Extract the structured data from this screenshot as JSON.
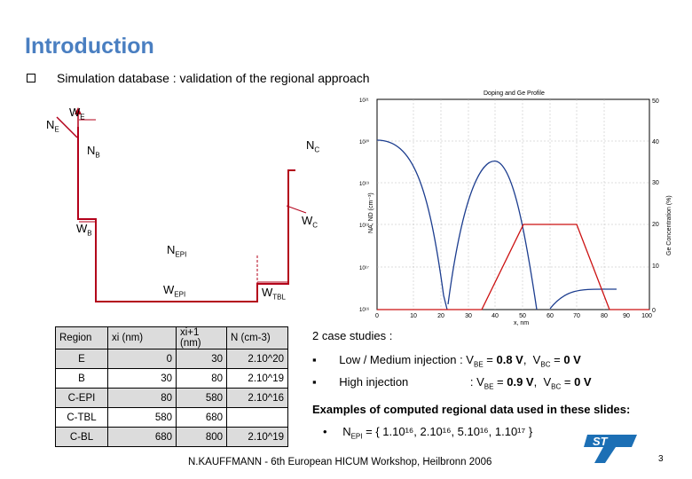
{
  "header": {
    "title": "Introduction",
    "subtitle": "Simulation database : validation of the regional approach"
  },
  "diagram": {
    "ne": "N",
    "ne_sub": "E",
    "we": "W",
    "we_sub": "E",
    "nb": "N",
    "nb_sub": "B",
    "nc": "N",
    "nc_sub": "C",
    "wb": "W",
    "wb_sub": "B",
    "wc": "W",
    "wc_sub": "C",
    "nepi": "N",
    "nepi_sub": "EPI",
    "wepi": "W",
    "wepi_sub": "EPI",
    "wtbl": "W",
    "wtbl_sub": "TBL"
  },
  "profile_chart": {
    "title": "Doping and Ge Profile",
    "ylabel_left": "NA, ND (cm⁻³)",
    "ylabel_right": "Ge Concentration (%)",
    "xlabel": "x, nm",
    "x_ticks": [
      "0",
      "10",
      "20",
      "30",
      "40",
      "50",
      "60",
      "70",
      "80",
      "90",
      "100"
    ],
    "y_left_ticks": [
      "10²¹",
      "10²⁰",
      "10¹⁹",
      "10¹⁸",
      "10¹⁷",
      "10¹⁶"
    ],
    "y_right_ticks": [
      "50",
      "40",
      "30",
      "20",
      "10",
      "0"
    ]
  },
  "table": {
    "headers": [
      "Region",
      "xi (nm)",
      "xi+1 (nm)",
      "N (cm-3)"
    ],
    "rows": [
      [
        "E",
        "0",
        "30",
        "2.10^20"
      ],
      [
        "B",
        "30",
        "80",
        "2.10^19"
      ],
      [
        "C-EPI",
        "80",
        "580",
        "2.10^16"
      ],
      [
        "C-TBL",
        "580",
        "680",
        ""
      ],
      [
        "C-BL",
        "680",
        "800",
        "2.10^19"
      ]
    ]
  },
  "cases": {
    "title": "2 case studies :",
    "items": [
      {
        "label": "Low / Medium injection",
        "vbe": "0.8 V",
        "vbc": "0 V"
      },
      {
        "label": "High injection",
        "vbe": "0.9 V",
        "vbc": "0 V"
      }
    ],
    "examples_title": "Examples of computed regional data used in these slides:",
    "nepi_values": "= { 1.10¹⁶, 2.10¹⁶, 5.10¹⁶, 1.10¹⁷ }"
  },
  "footer": {
    "text": "N.KAUFFMANN - 6th European HICUM Workshop, Heilbronn 2006",
    "page": "3"
  },
  "colors": {
    "title": "#4a7fc1",
    "doping": "#b3001a",
    "ge": "#cc1111",
    "logo": "#1c6fb5"
  }
}
